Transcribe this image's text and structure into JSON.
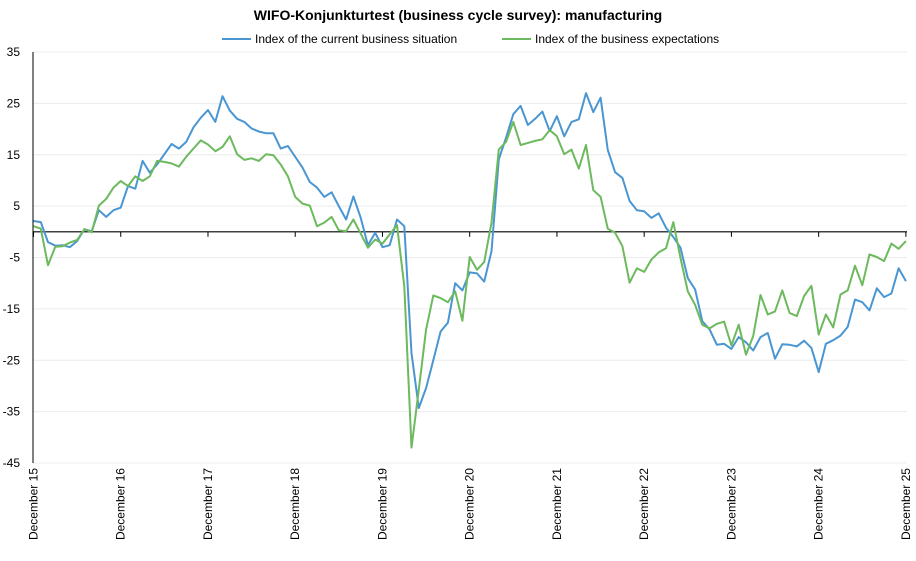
{
  "chart_data": {
    "type": "line",
    "title": "WIFO-Konjunkturtest (business cycle survey): manufacturing",
    "xlabel": "",
    "ylabel": "",
    "ylim": [
      -45,
      35
    ],
    "yticks": [
      35,
      25,
      15,
      5,
      -5,
      -15,
      -25,
      -35,
      -45
    ],
    "x_start": "December 2015",
    "x_frequency": "monthly",
    "xtick_labels": [
      "December 15",
      "December 16",
      "December 17",
      "December 18",
      "December 19",
      "December 20",
      "December 21",
      "December 22",
      "December 23",
      "December 24",
      "December 25"
    ],
    "grid": true,
    "legend_position": "top-center",
    "series": [
      {
        "name": "Index of the current business situation",
        "color": "#4a96d2",
        "values": [
          2.1,
          1.9,
          -2,
          -2.7,
          -2.6,
          -3,
          -1.8,
          0.5,
          0.1,
          4.2,
          2.9,
          4.2,
          4.7,
          8.9,
          8.4,
          13.8,
          11.5,
          13.1,
          15.1,
          17.1,
          16.2,
          17.5,
          20.3,
          22.2,
          23.7,
          21.4,
          26.4,
          23.6,
          22,
          21.4,
          20.1,
          19.5,
          19.2,
          19.2,
          16.2,
          16.7,
          14.6,
          12.5,
          9.7,
          8.6,
          6.8,
          7.7,
          5,
          2.4,
          6.9,
          2.8,
          -2.6,
          -0.2,
          -3,
          -2.6,
          2.4,
          1.1,
          -23.6,
          -34.3,
          -30.4,
          -25,
          -19.4,
          -17.7,
          -10,
          -11.4,
          -7.9,
          -8.1,
          -9.7,
          -3.8,
          14.1,
          18.3,
          22.9,
          24.5,
          20.8,
          22,
          23.4,
          19.6,
          22.5,
          18.6,
          21.4,
          21.9,
          27,
          23.3,
          26.1,
          15.9,
          11.6,
          10.5,
          6,
          4.2,
          4,
          2.7,
          3.6,
          0.8,
          -1,
          -3.1,
          -9,
          -11.2,
          -17.4,
          -19,
          -22,
          -21.8,
          -22.8,
          -20.5,
          -21.5,
          -23.1,
          -20.5,
          -19.7,
          -24.7,
          -21.9,
          -22,
          -22.3,
          -21.2,
          -22.6,
          -27.3,
          -21.8,
          -21.1,
          -20.2,
          -18.5,
          -13.2,
          -13.7,
          -15.3,
          -11,
          -12.7,
          -12,
          -7.1,
          -9.6
        ]
      },
      {
        "name": "Index of the business expectations",
        "color": "#6cb95e",
        "values": [
          1.1,
          0.6,
          -6.5,
          -2.9,
          -2.8,
          -2.1,
          -1.6,
          0.5,
          -0.1,
          5.1,
          6.4,
          8.6,
          9.9,
          8.9,
          10.8,
          9.9,
          10.8,
          13.8,
          13.6,
          13.3,
          12.7,
          14.6,
          16.2,
          17.8,
          17,
          15.7,
          16.5,
          18.6,
          15.1,
          14,
          14.3,
          13.8,
          15.1,
          14.9,
          13.1,
          10.8,
          6.8,
          5.5,
          5.1,
          1.1,
          1.8,
          2.9,
          0.3,
          0.1,
          2.4,
          -0.3,
          -3.1,
          -1.5,
          -2.3,
          -0.5,
          1.3,
          -10.6,
          -42,
          -30.7,
          -19,
          -12.4,
          -12.9,
          -13.7,
          -11.6,
          -17.3,
          -4.9,
          -7.4,
          -5.9,
          1.8,
          16,
          17.5,
          21.4,
          16.9,
          17.3,
          17.7,
          18,
          19.8,
          18.6,
          15.1,
          16,
          12.3,
          16.9,
          8.1,
          6.8,
          0.6,
          -0.2,
          -2.8,
          -9.9,
          -7.1,
          -7.8,
          -5.4,
          -4,
          -3.2,
          1.9,
          -5.1,
          -11.6,
          -14.2,
          -18.1,
          -18.8,
          -17.9,
          -17.5,
          -22.1,
          -18.1,
          -23.9,
          -20.3,
          -12.3,
          -16.1,
          -15.5,
          -11.4,
          -15.8,
          -16.4,
          -12.5,
          -10.5,
          -20,
          -16.1,
          -18.6,
          -12.2,
          -11.4,
          -6.6,
          -10.4,
          -4.4,
          -4.9,
          -5.7,
          -2.3,
          -3.3,
          -1.8
        ]
      }
    ]
  }
}
